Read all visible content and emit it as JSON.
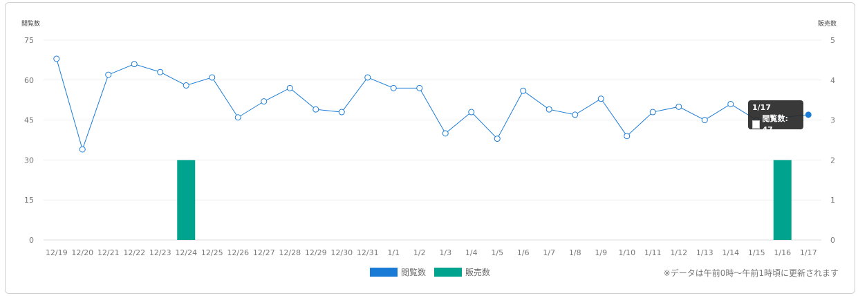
{
  "chart_data": {
    "type": "line",
    "left_axis_title": "閲覧数",
    "right_axis_title": "販売数",
    "left_ticks": [
      "0",
      "15",
      "30",
      "45",
      "60",
      "75"
    ],
    "right_ticks": [
      "0",
      "1",
      "2",
      "3",
      "4",
      "5"
    ],
    "ylim_left": [
      0,
      75
    ],
    "ylim_right": [
      0,
      5
    ],
    "categories": [
      "12/19",
      "12/20",
      "12/21",
      "12/22",
      "12/23",
      "12/24",
      "12/25",
      "12/26",
      "12/27",
      "12/28",
      "12/29",
      "12/30",
      "12/31",
      "1/1",
      "1/2",
      "1/3",
      "1/4",
      "1/5",
      "1/6",
      "1/7",
      "1/8",
      "1/9",
      "1/10",
      "1/11",
      "1/12",
      "1/13",
      "1/14",
      "1/15",
      "1/16",
      "1/17"
    ],
    "series": [
      {
        "name": "閲覧数",
        "type": "line",
        "axis": "left",
        "color": "#1a7bd6",
        "values": [
          68,
          34,
          62,
          66,
          63,
          58,
          61,
          46,
          52,
          57,
          49,
          48,
          61,
          57,
          57,
          40,
          48,
          38,
          56,
          49,
          47,
          53,
          39,
          48,
          50,
          45,
          51,
          45,
          46,
          47
        ]
      },
      {
        "name": "販売数",
        "type": "bar",
        "axis": "right",
        "color": "#00a38d",
        "values": [
          0,
          0,
          0,
          0,
          0,
          2,
          0,
          0,
          0,
          0,
          0,
          0,
          0,
          0,
          0,
          0,
          0,
          0,
          0,
          0,
          0,
          0,
          0,
          0,
          0,
          0,
          0,
          0,
          2,
          0
        ]
      }
    ],
    "grid": true,
    "legend_position": "bottom-center",
    "tooltip": {
      "title": "1/17",
      "label": "閲覧数: 47"
    },
    "note": "※データは午前0時～午前1時頃に更新されます"
  }
}
